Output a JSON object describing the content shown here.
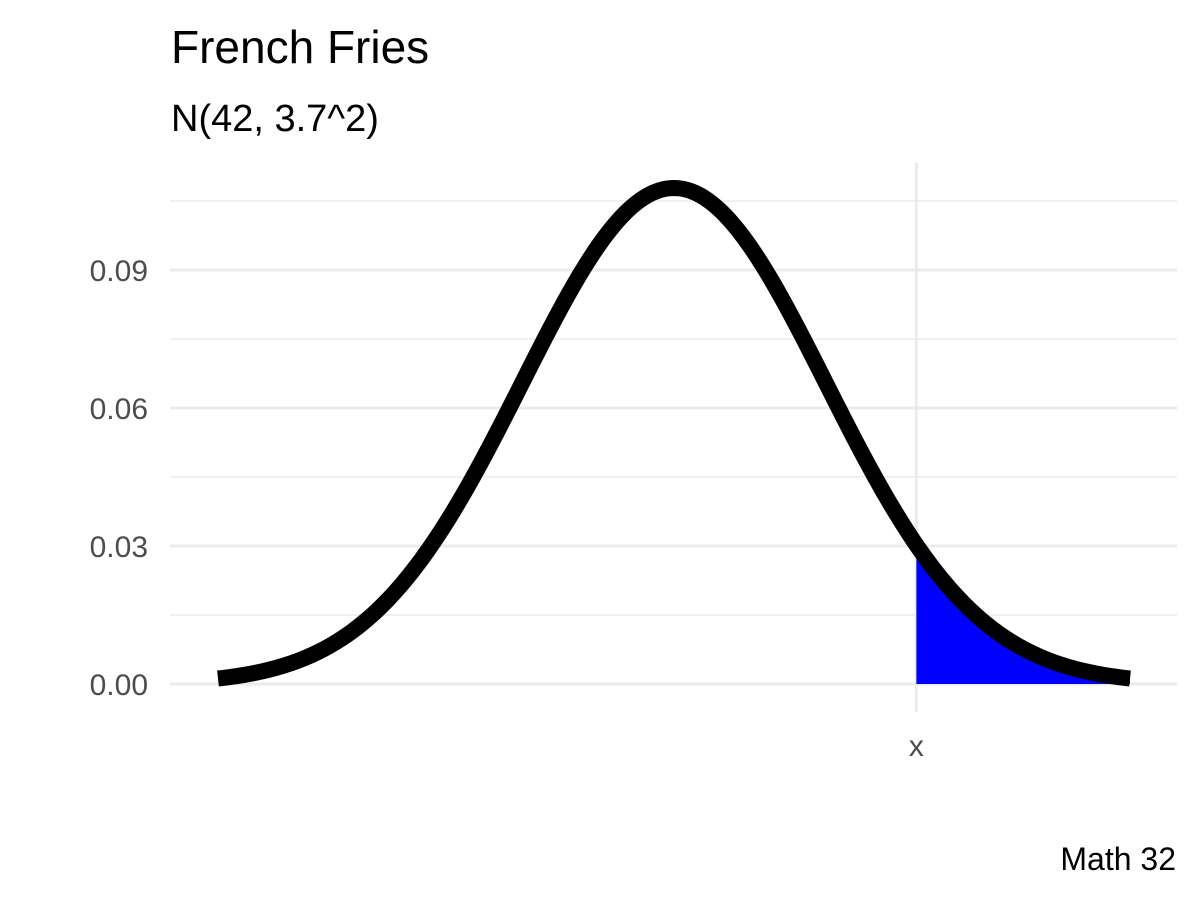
{
  "chart_data": {
    "type": "area",
    "title": "French Fries",
    "subtitle": "N(42, 3.7^2)",
    "caption": "Math 32",
    "distribution": {
      "mean": 42,
      "sd": 3.7
    },
    "xlim": [
      30.9,
      53.1
    ],
    "ylim": [
      0,
      0.108
    ],
    "y_ticks": [
      "0.00",
      "0.03",
      "0.06",
      "0.09"
    ],
    "y_tick_values": [
      0,
      0.03,
      0.06,
      0.09
    ],
    "x_ticks": [
      "x"
    ],
    "x_tick_values": [
      47.9
    ],
    "shaded_region": {
      "from": 47.9,
      "to": 53.1,
      "color": "#0000ff"
    },
    "line_color": "#000000",
    "grid": true,
    "xlabel": "",
    "ylabel": ""
  }
}
